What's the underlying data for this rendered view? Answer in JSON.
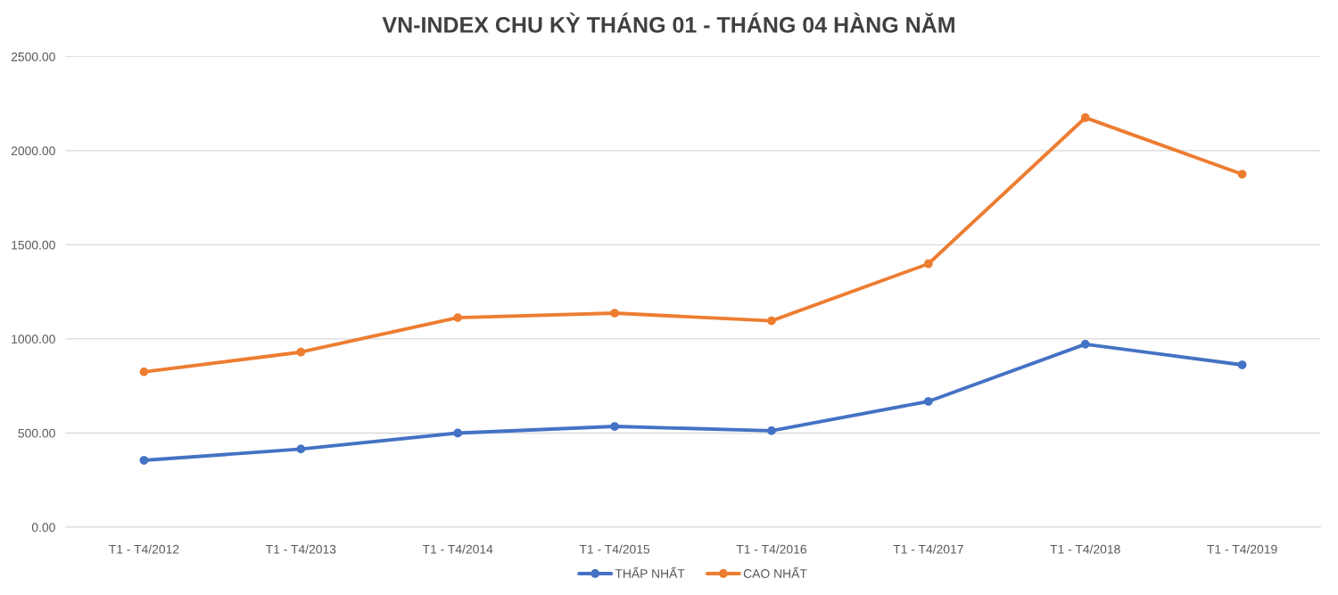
{
  "chart_data": {
    "type": "line",
    "title": "VN-INDEX CHU KỲ THÁNG 01 - THÁNG 04 HÀNG NĂM",
    "categories": [
      "T1 - T4/2012",
      "T1 - T4/2013",
      "T1 - T4/2014",
      "T1 - T4/2015",
      "T1 - T4/2016",
      "T1 - T4/2017",
      "T1 - T4/2018",
      "T1 - T4/2019"
    ],
    "series": [
      {
        "name": "THẤP NHẤT",
        "color": "#4472c4",
        "values": [
          355,
          415,
          500,
          535,
          512,
          668,
          972,
          862
        ]
      },
      {
        "name": "CAO NHẤT",
        "color": "#ed7d31",
        "values": [
          825,
          930,
          1113,
          1137,
          1096,
          1399,
          2175,
          1875
        ]
      }
    ],
    "ylim": [
      0,
      2500
    ],
    "yticks": [
      {
        "value": 0,
        "label": "0.00"
      },
      {
        "value": 500,
        "label": "500.00"
      },
      {
        "value": 1000,
        "label": "1000.00"
      },
      {
        "value": 1500,
        "label": "1500.00"
      },
      {
        "value": 2000,
        "label": "2000.00"
      },
      {
        "value": 2500,
        "label": "2500.00"
      }
    ],
    "grid": "y",
    "legend": "bottom",
    "marker": "circle",
    "line_style": "solid"
  }
}
